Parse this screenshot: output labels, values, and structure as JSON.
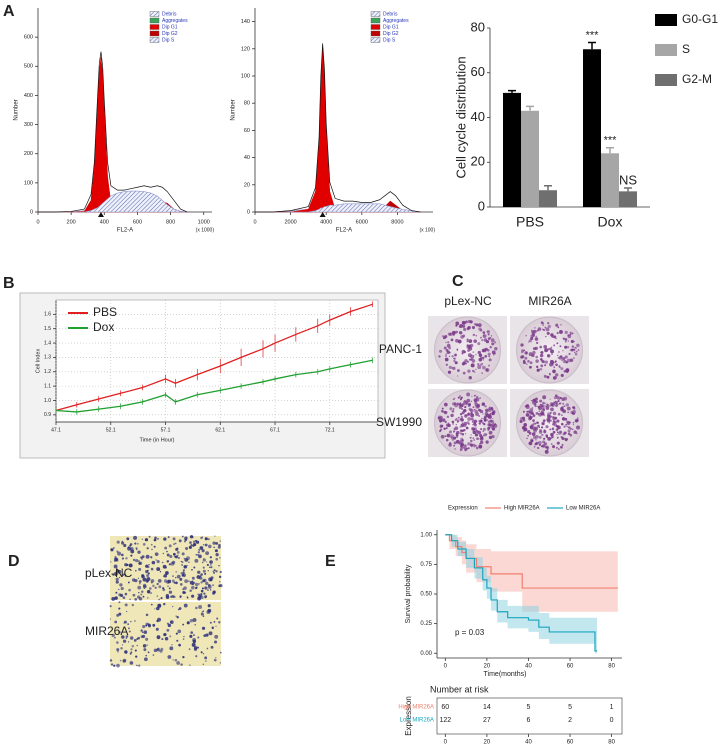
{
  "panel_labels": [
    "A",
    "B",
    "C",
    "D",
    "E"
  ],
  "chart_data": [
    {
      "type": "area",
      "xlabel": "FL2-A",
      "ylabel": "Number",
      "x_unit": "(x 1000)",
      "x": [
        0,
        100,
        200,
        280,
        320,
        340,
        360,
        370,
        380,
        390,
        400,
        420,
        440,
        480,
        520,
        560,
        600,
        640,
        680,
        720,
        750,
        780,
        820,
        860,
        900
      ],
      "total": [
        0,
        0,
        2,
        10,
        60,
        170,
        400,
        510,
        550,
        500,
        380,
        170,
        90,
        75,
        75,
        80,
        85,
        90,
        85,
        90,
        85,
        70,
        40,
        10,
        0
      ],
      "series": [
        {
          "name": "Debris",
          "color": "#8f9bd0",
          "hatched": true,
          "values": [
            0,
            0,
            0,
            5,
            10,
            12,
            14,
            15,
            15,
            15,
            15,
            15,
            14,
            12,
            10,
            8,
            7,
            6,
            5,
            4,
            3,
            2,
            1,
            0,
            0
          ]
        },
        {
          "name": "Aggregates",
          "color": "#3aa55a",
          "hatched": false,
          "values": [
            0,
            0,
            0,
            0,
            0,
            0,
            0,
            0,
            0,
            0,
            0,
            1,
            1,
            1,
            2,
            2,
            2,
            3,
            3,
            3,
            3,
            3,
            2,
            1,
            0
          ]
        },
        {
          "name": "Dip G1",
          "color": "#e00000",
          "hatched": false,
          "values": [
            0,
            0,
            0,
            2,
            40,
            150,
            380,
            480,
            530,
            470,
            350,
            120,
            30,
            5,
            0,
            0,
            0,
            0,
            0,
            0,
            0,
            0,
            0,
            0,
            0
          ]
        },
        {
          "name": "Dip G2",
          "color": "#c00000",
          "hatched": false,
          "values": [
            0,
            0,
            0,
            0,
            0,
            0,
            0,
            0,
            0,
            0,
            0,
            0,
            0,
            0,
            0,
            0,
            0,
            0,
            5,
            20,
            35,
            30,
            10,
            2,
            0
          ]
        },
        {
          "name": "Dip S",
          "color": "#8f9bd0",
          "hatched": true,
          "values": [
            0,
            0,
            0,
            0,
            5,
            10,
            15,
            20,
            25,
            30,
            35,
            45,
            55,
            65,
            70,
            72,
            72,
            70,
            65,
            55,
            40,
            25,
            10,
            2,
            0
          ]
        }
      ],
      "xlim": [
        0,
        1050
      ],
      "xticks": [
        0,
        200,
        400,
        600,
        800,
        1000
      ],
      "ylim": [
        0,
        700
      ],
      "yticks": [
        0,
        100,
        200,
        300,
        400,
        500,
        600
      ]
    },
    {
      "type": "area",
      "xlabel": "FL2-A",
      "ylabel": "Number",
      "x_unit": "(x 100)",
      "x": [
        0,
        1000,
        2000,
        3000,
        3400,
        3600,
        3700,
        3800,
        3900,
        4000,
        4200,
        4500,
        5000,
        5500,
        6000,
        6500,
        7000,
        7300,
        7600,
        7900,
        8300,
        8800,
        9300
      ],
      "total": [
        0,
        0,
        1,
        4,
        18,
        55,
        100,
        124,
        105,
        65,
        22,
        10,
        8,
        8,
        7,
        7,
        9,
        12,
        15,
        12,
        5,
        1,
        0
      ],
      "series": [
        {
          "name": "Debris",
          "color": "#8f9bd0",
          "hatched": true,
          "values": [
            0,
            0,
            1,
            2,
            2,
            2,
            2,
            2,
            2,
            2,
            2,
            2,
            2,
            2,
            1,
            1,
            1,
            1,
            1,
            1,
            0,
            0,
            0
          ]
        },
        {
          "name": "Aggregates",
          "color": "#3aa55a",
          "hatched": false,
          "values": [
            0,
            0,
            0,
            0,
            0,
            0,
            0,
            0,
            0,
            0,
            0,
            0,
            0,
            0,
            0,
            0,
            1,
            1,
            1,
            1,
            1,
            0,
            0
          ]
        },
        {
          "name": "Dip G1",
          "color": "#e00000",
          "hatched": false,
          "values": [
            0,
            0,
            0,
            2,
            15,
            50,
            95,
            120,
            100,
            60,
            15,
            2,
            0,
            0,
            0,
            0,
            0,
            0,
            0,
            0,
            0,
            0,
            0
          ]
        },
        {
          "name": "Dip G2",
          "color": "#c00000",
          "hatched": false,
          "values": [
            0,
            0,
            0,
            0,
            0,
            0,
            0,
            0,
            0,
            0,
            0,
            0,
            0,
            0,
            0,
            0,
            1,
            4,
            8,
            5,
            1,
            0,
            0
          ]
        },
        {
          "name": "Dip S",
          "color": "#8f9bd0",
          "hatched": true,
          "values": [
            0,
            0,
            0,
            0,
            1,
            2,
            3,
            3,
            4,
            4,
            5,
            5,
            6,
            6,
            6,
            6,
            6,
            5,
            4,
            3,
            2,
            1,
            0
          ]
        }
      ],
      "xlim": [
        0,
        10000
      ],
      "xticks": [
        0,
        2000,
        4000,
        6000,
        8000
      ],
      "ylim": [
        0,
        150
      ],
      "yticks": [
        0,
        20,
        40,
        60,
        80,
        100,
        120,
        140
      ]
    },
    {
      "type": "bar",
      "ylabel": "Cell cycle distribution",
      "categories": [
        "PBS",
        "Dox"
      ],
      "series": [
        {
          "name": "G0-G1",
          "color": "#000000",
          "values": [
            51,
            70.5
          ],
          "errors": [
            1,
            3
          ],
          "annotations": [
            null,
            "***"
          ]
        },
        {
          "name": "S",
          "color": "#a6a6a6",
          "values": [
            43,
            24
          ],
          "errors": [
            2,
            2.5
          ],
          "annotations": [
            null,
            "***"
          ]
        },
        {
          "name": "G2-M",
          "color": "#6f6f6f",
          "values": [
            7.5,
            7
          ],
          "errors": [
            2,
            1.5
          ],
          "annotations": [
            null,
            "NS"
          ]
        }
      ],
      "ylim": [
        0,
        80
      ],
      "yticks": [
        0,
        20,
        40,
        60,
        80
      ]
    },
    {
      "type": "line",
      "xlabel": "Time (in Hour)",
      "ylabel": "Cell Index",
      "grid": true,
      "x": [
        47.1,
        49,
        51,
        53,
        55,
        57.1,
        58,
        60,
        62.1,
        64,
        66,
        67.1,
        69,
        71,
        72.1,
        74,
        76
      ],
      "series": [
        {
          "name": "PBS",
          "color": "#e02020",
          "values": [
            0.93,
            0.97,
            1.01,
            1.05,
            1.09,
            1.15,
            1.12,
            1.18,
            1.24,
            1.3,
            1.36,
            1.4,
            1.46,
            1.52,
            1.56,
            1.62,
            1.67
          ],
          "errors": [
            0.02,
            0.02,
            0.02,
            0.02,
            0.02,
            0.03,
            0.03,
            0.04,
            0.05,
            0.06,
            0.06,
            0.06,
            0.05,
            0.05,
            0.04,
            0.03,
            0.02
          ]
        },
        {
          "name": "Dox",
          "color": "#20a030",
          "values": [
            0.93,
            0.92,
            0.94,
            0.96,
            0.99,
            1.04,
            0.99,
            1.04,
            1.07,
            1.1,
            1.13,
            1.15,
            1.18,
            1.2,
            1.22,
            1.25,
            1.28
          ],
          "errors": [
            0.02,
            0.02,
            0.02,
            0.02,
            0.02,
            0.02,
            0.02,
            0.02,
            0.02,
            0.02,
            0.02,
            0.02,
            0.02,
            0.02,
            0.02,
            0.02,
            0.02
          ]
        }
      ],
      "xlim": [
        47.1,
        76.5
      ],
      "xticks": [
        47.1,
        52.1,
        57.1,
        62.1,
        67.1,
        72.1
      ],
      "ylim": [
        0.85,
        1.7
      ],
      "yticks": [
        0.9,
        {
          "value": 1.0,
          "label": "1.0"
        },
        1.1,
        1.2,
        1.3,
        1.4,
        1.5,
        1.6
      ]
    },
    {
      "type": "step",
      "xlabel": "Time(months)",
      "ylabel": "Survival probability",
      "legend_title": "Expression",
      "annotation": "p = 0.03",
      "series": [
        {
          "name": "High MIR26A",
          "color": "#f08070",
          "band": "#f7b8b0",
          "x": [
            0,
            2,
            5,
            8,
            10,
            15,
            22,
            37,
            83
          ],
          "values": [
            1,
            0.95,
            0.9,
            0.85,
            0.8,
            0.73,
            0.67,
            0.55,
            0.55
          ],
          "lower": [
            1,
            0.88,
            0.82,
            0.75,
            0.68,
            0.6,
            0.52,
            0.35,
            0.35
          ],
          "upper": [
            1,
            1,
            0.98,
            0.95,
            0.92,
            0.88,
            0.86,
            0.86,
            0.86
          ]
        },
        {
          "name": "Low MIR26A",
          "color": "#1aa6c0",
          "band": "#8fd3e0",
          "x": [
            0,
            3,
            6,
            10,
            14,
            18,
            20,
            22,
            25,
            30,
            40,
            45,
            50,
            72,
            73
          ],
          "values": [
            1,
            0.95,
            0.88,
            0.8,
            0.72,
            0.62,
            0.55,
            0.45,
            0.35,
            0.3,
            0.28,
            0.22,
            0.18,
            0.02,
            0.02
          ],
          "lower": [
            1,
            0.9,
            0.82,
            0.72,
            0.63,
            0.53,
            0.46,
            0.36,
            0.26,
            0.21,
            0.18,
            0.12,
            0.08,
            0,
            0
          ],
          "upper": [
            1,
            1,
            0.94,
            0.88,
            0.81,
            0.72,
            0.65,
            0.55,
            0.45,
            0.4,
            0.4,
            0.34,
            0.3,
            0.3,
            0.3
          ]
        }
      ],
      "xlim": [
        -4,
        85
      ],
      "xticks": [
        0,
        20,
        40,
        60,
        80
      ],
      "ylim": [
        -0.04,
        1.04
      ],
      "yticks": [
        {
          "value": 0,
          "label": "0.00"
        },
        {
          "value": 0.25,
          "label": "0.25"
        },
        {
          "value": 0.5,
          "label": "0.50"
        },
        {
          "value": 0.75,
          "label": "0.75"
        },
        {
          "value": 1,
          "label": "1.00"
        }
      ],
      "risk_table": {
        "title": "Number at risk",
        "ylabel": "Expression",
        "rows": [
          [
            60,
            14,
            5,
            5,
            1
          ],
          [
            122,
            27,
            6,
            2,
            0
          ]
        ]
      }
    }
  ],
  "colonies": {
    "columns": [
      "pLex-NC",
      "MIR26A"
    ],
    "rows": [
      "PANC-1",
      "SW1990"
    ]
  },
  "transwell": {
    "rows": [
      "pLex-NC",
      "MIR26A"
    ]
  }
}
